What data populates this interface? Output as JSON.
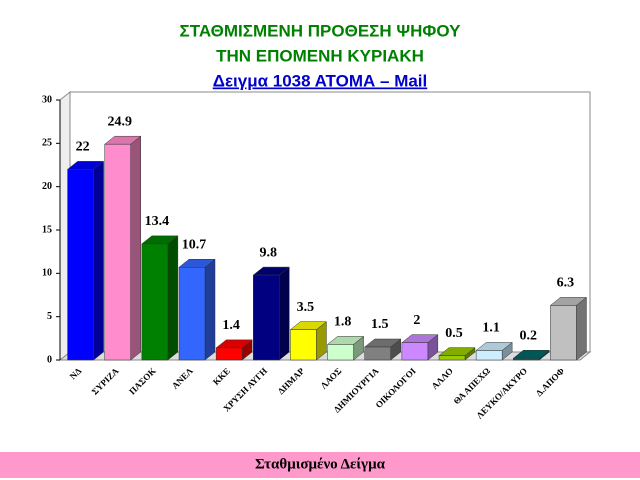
{
  "chart_data": {
    "type": "bar3d",
    "title": "ΣΤΑΘΜΙΣΜΕΝΗ ΠΡΟΘΕΣΗ ΨΗΦΟΥ",
    "subtitle": "ΤΗΝ ΕΠΟΜΕΝΗ ΚΥΡΙΑΚΗ",
    "sample_note": "Δειγμα 1038  ΑΤΟΜΑ – Mail",
    "footer": "Σταθμισμένο Δείγμα",
    "categories": [
      "ΝΔ",
      "ΣΥΡΙΖΑ",
      "ΠΑΣΟΚ",
      "ΑΝΕΛ",
      "ΚΚΕ",
      "ΧΡΥΣΗ ΑΥΓΗ",
      "ΔΗΜΑΡ",
      "ΛΑΟΣ",
      "ΔΗΜΙΟΥΡΓΙΑ",
      "ΟΙΚΟΛΟΓΟΙ",
      "ΑΛΛΟ",
      "ΘΑ ΑΠΕΧΩ",
      "ΛΕΥΚΟ/ΑΚΥΡΟ",
      "Δ.ΑΠΟΦ"
    ],
    "values": [
      22,
      24.9,
      13.4,
      10.7,
      1.4,
      9.8,
      3.5,
      1.8,
      1.5,
      2,
      0.5,
      1.1,
      0.2,
      6.3
    ],
    "colors": [
      "#0000ff",
      "#ff8ccc",
      "#008000",
      "#3366ff",
      "#ff0000",
      "#000080",
      "#ffff00",
      "#ccffcc",
      "#808080",
      "#cc88ff",
      "#99cc00",
      "#cceeff",
      "#006666",
      "#c0c0c0"
    ],
    "ylim": [
      0,
      30
    ],
    "yticks": [
      0,
      5,
      10,
      15,
      20,
      25,
      30
    ]
  }
}
